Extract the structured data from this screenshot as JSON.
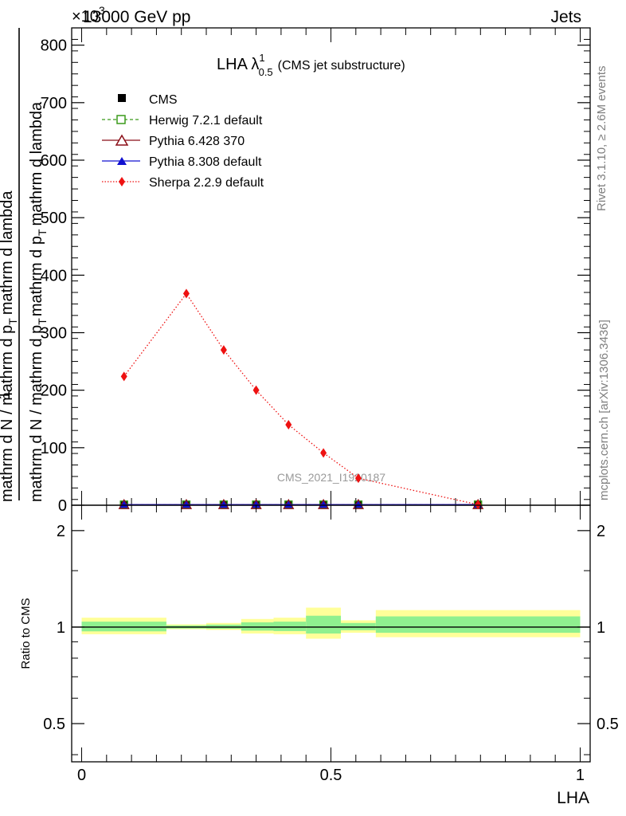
{
  "header": {
    "energy": "13000 GeV pp",
    "process": "Jets",
    "exponent": "×10",
    "exponent_power": "3"
  },
  "side_labels": {
    "rivet": "Rivet 3.1.10, ≥ 2.6M events",
    "mcplots": "mcplots.cern.ch [arXiv:1306.3436]"
  },
  "watermark": "CMS_2021_I1920187",
  "chart_data": [
    {
      "type": "line",
      "title": "LHA λ",
      "title_sup": "1",
      "title_sub": "0.5",
      "title_suffix": "(CMS jet substructure)",
      "ylabel_line1": "mathrm d N / mathrm d p",
      "ylabel_line1_sub": "T",
      "ylabel_line1_suffix": "mathrm d lambda",
      "ylabel_line2": "mathrm d N / mathrm d p",
      "ylabel_line2_sub": "T",
      "ylabel_line2_suffix": "mathrm d p",
      "ylabel_line2_sub2": "T",
      "ylabel_line2_suffix2": "mathrm d lambda",
      "ylabel_one": "1",
      "ylim": [
        0,
        830
      ],
      "xlim": [
        -0.02,
        1.02
      ],
      "yticks": [
        0,
        100,
        200,
        300,
        400,
        500,
        600,
        700,
        800
      ],
      "ytick_labels": [
        "0",
        "100",
        "200",
        "300",
        "400",
        "500",
        "600",
        "700",
        "800"
      ],
      "legend_position": "top-left",
      "x": [
        0.085,
        0.21,
        0.285,
        0.35,
        0.415,
        0.485,
        0.555,
        0.795
      ],
      "series": [
        {
          "name": "CMS",
          "color": "#000000",
          "marker": "square",
          "line": "none",
          "values": [
            1,
            1,
            1,
            1,
            1,
            1,
            1,
            1
          ]
        },
        {
          "name": "Herwig 7.2.1 default",
          "color": "#3a9a1a",
          "marker": "open-square",
          "line": "dashed",
          "values": [
            1,
            1,
            1,
            1,
            1,
            1,
            1,
            1
          ]
        },
        {
          "name": "Pythia 6.428 370",
          "color": "#8b0f18",
          "marker": "open-triangle",
          "line": "solid",
          "values": [
            1,
            1,
            1,
            1,
            1,
            1,
            1,
            1
          ]
        },
        {
          "name": "Pythia 8.308 default",
          "color": "#1010d0",
          "marker": "triangle",
          "line": "solid",
          "values": [
            1,
            1,
            1,
            1,
            1,
            1,
            1,
            1
          ]
        },
        {
          "name": "Sherpa 2.2.9 default",
          "color": "#ee1111",
          "marker": "diamond",
          "line": "dotted",
          "values": [
            224,
            368,
            270,
            200,
            140,
            91,
            47,
            1
          ]
        }
      ]
    },
    {
      "type": "area",
      "ylabel": "Ratio to CMS",
      "xlabel": "LHA",
      "ylim": [
        0.38,
        2.4
      ],
      "log_y": true,
      "yticks": [
        0.5,
        1,
        2
      ],
      "ytick_labels": [
        "0.5",
        "1",
        "2"
      ],
      "xticks": [
        0,
        0.5,
        1
      ],
      "xtick_labels": [
        "0",
        "0.5",
        "1"
      ],
      "ratio_line": 1,
      "bands": [
        {
          "x0": 0.0,
          "x1": 0.17,
          "yellow": [
            0.95,
            1.07
          ],
          "green": [
            0.97,
            1.04
          ]
        },
        {
          "x0": 0.17,
          "x1": 0.25,
          "yellow": [
            0.985,
            1.02
          ],
          "green": [
            0.99,
            1.012
          ]
        },
        {
          "x0": 0.25,
          "x1": 0.32,
          "yellow": [
            0.98,
            1.03
          ],
          "green": [
            0.988,
            1.018
          ]
        },
        {
          "x0": 0.32,
          "x1": 0.385,
          "yellow": [
            0.955,
            1.06
          ],
          "green": [
            0.975,
            1.035
          ]
        },
        {
          "x0": 0.385,
          "x1": 0.45,
          "yellow": [
            0.95,
            1.07
          ],
          "green": [
            0.972,
            1.04
          ]
        },
        {
          "x0": 0.45,
          "x1": 0.52,
          "yellow": [
            0.92,
            1.15
          ],
          "green": [
            0.955,
            1.085
          ]
        },
        {
          "x0": 0.52,
          "x1": 0.59,
          "yellow": [
            0.96,
            1.05
          ],
          "green": [
            0.978,
            1.03
          ]
        },
        {
          "x0": 0.59,
          "x1": 1.0,
          "yellow": [
            0.93,
            1.13
          ],
          "green": [
            0.96,
            1.08
          ]
        }
      ]
    }
  ]
}
